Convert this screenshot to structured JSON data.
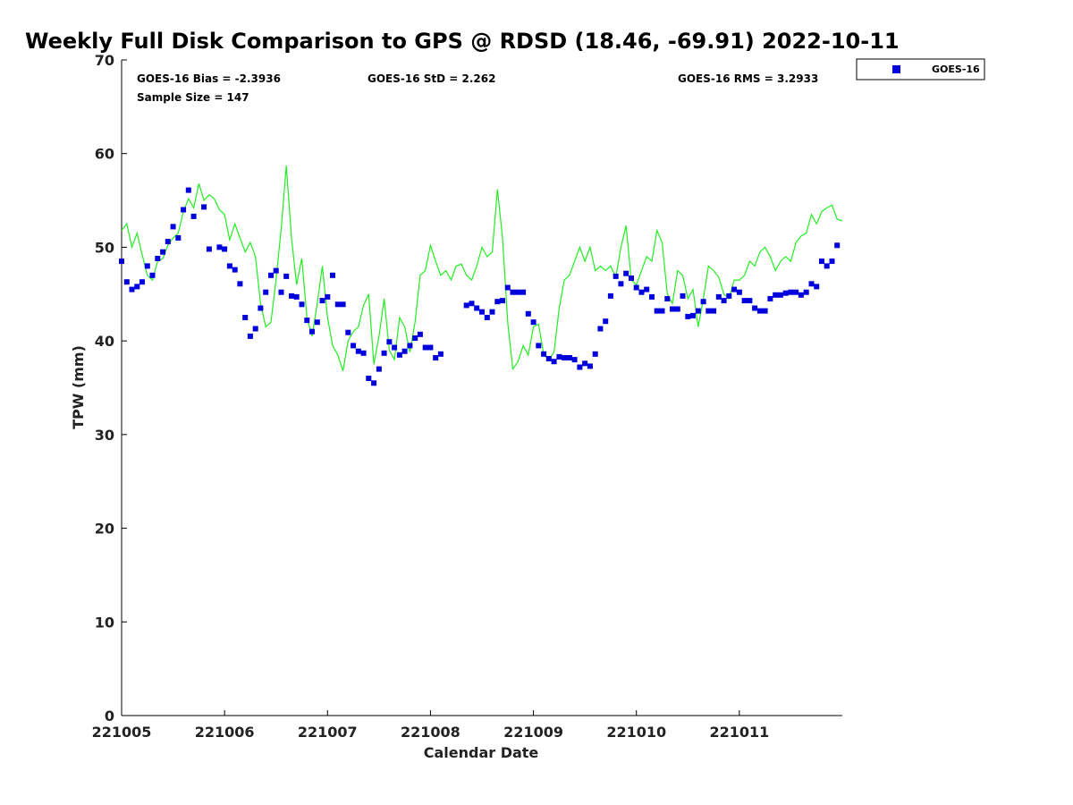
{
  "chart_data": {
    "type": "scatter",
    "title": "Weekly Full Disk Comparison to GPS @ RDSD (18.46, -69.91) 2022-10-11",
    "xlabel": "Calendar Date",
    "ylabel": "TPW (mm)",
    "xlim": [
      0,
      7
    ],
    "ylim": [
      0,
      70
    ],
    "x_tick_labels": [
      "221005",
      "221006",
      "221007",
      "221008",
      "221009",
      "221010",
      "221011"
    ],
    "x_tick_positions": [
      0,
      1,
      2,
      3,
      4,
      5,
      6
    ],
    "y_ticks": [
      0,
      10,
      20,
      30,
      40,
      50,
      60,
      70
    ],
    "stats": {
      "bias": "GOES-16 Bias = -2.3936",
      "std": "GOES-16 StD = 2.262",
      "rms": "GOES-16 RMS = 3.2933",
      "sample": "Sample Size = 147"
    },
    "legend": {
      "label": "GOES-16",
      "position": "top-right"
    },
    "colors": {
      "goes": "#0000dd",
      "gps": "#22ee22"
    },
    "series": [
      {
        "name": "GPS",
        "kind": "line",
        "x": [
          0,
          0.05,
          0.1,
          0.15,
          0.2,
          0.25,
          0.3,
          0.35,
          0.4,
          0.45,
          0.5,
          0.55,
          0.6,
          0.65,
          0.7,
          0.75,
          0.8,
          0.85,
          0.9,
          0.95,
          1.0,
          1.05,
          1.1,
          1.15,
          1.2,
          1.25,
          1.3,
          1.35,
          1.4,
          1.45,
          1.5,
          1.55,
          1.6,
          1.65,
          1.7,
          1.75,
          1.8,
          1.85,
          1.9,
          1.95,
          2.0,
          2.05,
          2.1,
          2.15,
          2.2,
          2.25,
          2.3,
          2.35,
          2.4,
          2.45,
          2.5,
          2.55,
          2.6,
          2.65,
          2.7,
          2.75,
          2.8,
          2.85,
          2.9,
          2.95,
          3.0,
          3.05,
          3.1,
          3.15,
          3.2,
          3.25,
          3.3,
          3.35,
          3.4,
          3.45,
          3.5,
          3.55,
          3.6,
          3.65,
          3.7,
          3.75,
          3.8,
          3.85,
          3.9,
          3.95,
          4.0,
          4.05,
          4.1,
          4.15,
          4.2,
          4.25,
          4.3,
          4.35,
          4.4,
          4.45,
          4.5,
          4.55,
          4.6,
          4.65,
          4.7,
          4.75,
          4.8,
          4.85,
          4.9,
          4.95,
          5.0,
          5.05,
          5.1,
          5.15,
          5.2,
          5.25,
          5.3,
          5.35,
          5.4,
          5.45,
          5.5,
          5.55,
          5.6,
          5.65,
          5.7,
          5.75,
          5.8,
          5.85,
          5.9,
          5.95,
          6.0,
          6.05,
          6.1,
          6.15,
          6.2,
          6.25,
          6.3,
          6.35,
          6.4,
          6.45,
          6.5,
          6.55,
          6.6,
          6.65,
          6.7,
          6.75,
          6.8,
          6.85,
          6.9,
          6.95,
          7.0
        ],
        "values": [
          51.8,
          52.5,
          50.0,
          51.5,
          49.2,
          47.0,
          46.5,
          48.5,
          48.8,
          50.2,
          51.0,
          51.5,
          53.8,
          55.2,
          54.2,
          56.8,
          55.0,
          55.6,
          55.2,
          54.0,
          53.5,
          50.8,
          52.5,
          51.0,
          49.5,
          50.5,
          49.0,
          44.0,
          41.5,
          42.0,
          46.5,
          52.0,
          58.7,
          51.0,
          46.0,
          48.8,
          42.5,
          40.5,
          44.0,
          48.0,
          42.5,
          39.5,
          38.5,
          36.8,
          40.0,
          41.0,
          41.5,
          43.8,
          45.0,
          37.5,
          40.5,
          44.5,
          39.0,
          38.0,
          42.5,
          41.5,
          38.8,
          42.0,
          47.0,
          47.5,
          50.2,
          48.5,
          47.0,
          47.5,
          46.5,
          48.0,
          48.2,
          47.0,
          46.5,
          48.0,
          50.0,
          49.0,
          49.5,
          56.2,
          51.0,
          42.0,
          37.0,
          37.8,
          39.5,
          38.5,
          41.5,
          41.8,
          38.5,
          38.0,
          38.8,
          43.5,
          46.5,
          47.0,
          48.5,
          50.0,
          48.5,
          50.0,
          47.5,
          48.0,
          47.5,
          48.0,
          46.8,
          50.0,
          52.3,
          46.5,
          46.0,
          47.5,
          49.0,
          48.5,
          51.8,
          50.5,
          45.0,
          44.0,
          47.5,
          47.0,
          44.5,
          45.5,
          41.5,
          44.5,
          48.0,
          47.5,
          46.8,
          45.0,
          44.5,
          46.5,
          46.5,
          47.0,
          48.5,
          48.0,
          49.5,
          50.0,
          49.0,
          47.5,
          48.5,
          49.0,
          48.5,
          50.5,
          51.2,
          51.5,
          53.5,
          52.5,
          53.8,
          54.2,
          54.5,
          53.0,
          52.8
        ]
      },
      {
        "name": "GOES-16",
        "kind": "scatter",
        "x": [
          0.0,
          0.05,
          0.1,
          0.15,
          0.2,
          0.25,
          0.3,
          0.35,
          0.4,
          0.45,
          0.5,
          0.55,
          0.6,
          0.65,
          0.7,
          0.8,
          0.85,
          0.95,
          1.0,
          1.05,
          1.1,
          1.15,
          1.2,
          1.25,
          1.3,
          1.35,
          1.4,
          1.45,
          1.5,
          1.55,
          1.6,
          1.65,
          1.7,
          1.75,
          1.8,
          1.85,
          1.9,
          1.95,
          2.0,
          2.05,
          2.1,
          2.15,
          2.2,
          2.25,
          2.3,
          2.35,
          2.4,
          2.45,
          2.5,
          2.55,
          2.6,
          2.65,
          2.7,
          2.75,
          2.8,
          2.85,
          2.9,
          2.95,
          3.0,
          3.05,
          3.1,
          3.35,
          3.4,
          3.45,
          3.5,
          3.55,
          3.6,
          3.65,
          3.7,
          3.75,
          3.8,
          3.85,
          3.9,
          3.95,
          4.0,
          4.05,
          4.1,
          4.15,
          4.2,
          4.25,
          4.3,
          4.35,
          4.4,
          4.45,
          4.5,
          4.55,
          4.6,
          4.65,
          4.7,
          4.75,
          4.8,
          4.85,
          4.9,
          4.95,
          5.0,
          5.05,
          5.1,
          5.15,
          5.2,
          5.25,
          5.3,
          5.35,
          5.4,
          5.45,
          5.5,
          5.55,
          5.6,
          5.65,
          5.7,
          5.75,
          5.8,
          5.85,
          5.9,
          5.95,
          6.0,
          6.05,
          6.1,
          6.15,
          6.2,
          6.25,
          6.3,
          6.35,
          6.4,
          6.45,
          6.5,
          6.55,
          6.6,
          6.65,
          6.7,
          6.75,
          6.8,
          6.85,
          6.9,
          6.95
        ],
        "values": [
          48.5,
          46.3,
          45.5,
          45.8,
          46.3,
          48.0,
          47.0,
          48.8,
          49.5,
          50.6,
          52.2,
          51.0,
          54.0,
          56.1,
          53.3,
          54.3,
          49.8,
          50.0,
          49.8,
          48.0,
          47.6,
          46.1,
          42.5,
          40.5,
          41.3,
          43.5,
          45.2,
          47.0,
          47.5,
          45.2,
          46.9,
          44.8,
          44.7,
          43.9,
          42.2,
          41.0,
          42.0,
          44.3,
          44.7,
          47.0,
          43.9,
          43.9,
          40.9,
          39.5,
          38.9,
          38.7,
          36.0,
          35.5,
          37.0,
          38.7,
          39.9,
          39.3,
          38.5,
          38.9,
          39.5,
          40.3,
          40.7,
          39.3,
          39.3,
          38.2,
          38.6,
          43.8,
          44.0,
          43.5,
          43.1,
          42.5,
          43.1,
          44.2,
          44.3,
          45.7,
          45.2,
          45.2,
          45.2,
          42.9,
          42.0,
          39.5,
          38.6,
          38.1,
          37.8,
          38.3,
          38.2,
          38.2,
          38.0,
          37.2,
          37.6,
          37.3,
          38.6,
          41.3,
          42.1,
          44.8,
          46.9,
          46.1,
          47.2,
          46.7,
          45.7,
          45.2,
          45.5,
          44.7,
          43.2,
          43.2,
          44.5,
          43.4,
          43.4,
          44.8,
          42.6,
          42.7,
          43.2,
          44.2,
          43.2,
          43.2,
          44.7,
          44.3,
          44.8,
          45.5,
          45.2,
          44.3,
          44.3,
          43.5,
          43.2,
          43.2,
          44.5,
          44.9,
          44.9,
          45.1,
          45.2,
          45.2,
          44.9,
          45.2,
          46.1,
          45.8,
          48.5,
          48.0,
          48.5,
          50.2
        ]
      }
    ]
  }
}
